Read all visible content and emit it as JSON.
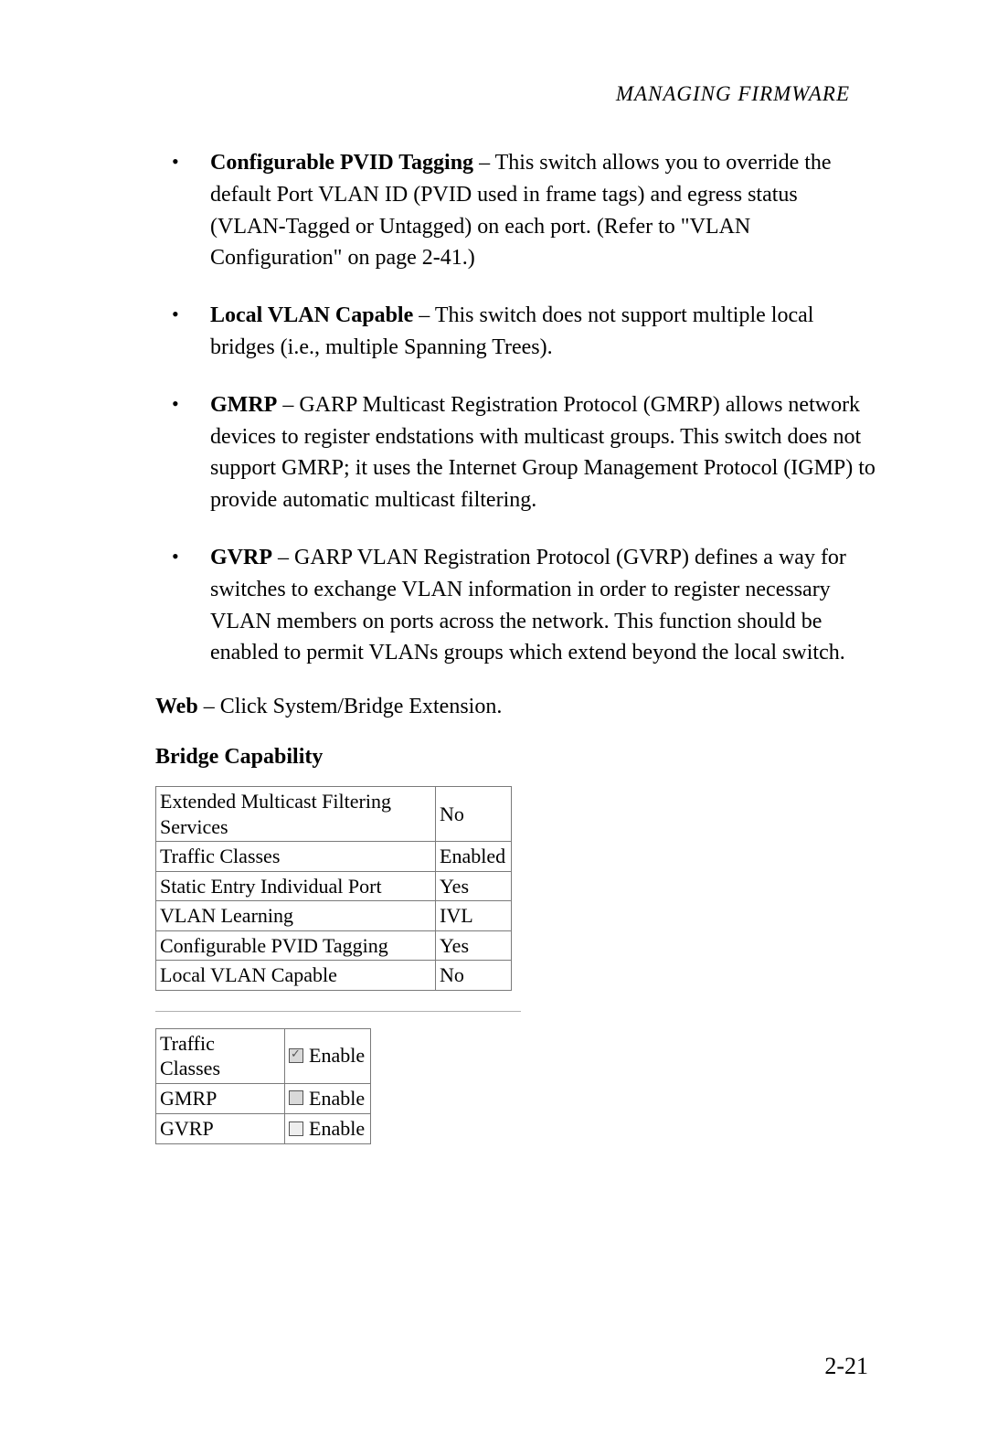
{
  "header": "MANAGING FIRMWARE",
  "bullets": [
    {
      "term": "Configurable PVID Tagging",
      "text": " – This switch allows you to override the default Port VLAN ID (PVID used in frame tags) and egress status (VLAN-Tagged or Untagged) on each port. (Refer to \"VLAN Configuration\" on page 2-41.)"
    },
    {
      "term": "Local VLAN Capable",
      "text": " – This switch does not support multiple local bridges (i.e., multiple Spanning Trees)."
    },
    {
      "term": "GMRP",
      "text": " – GARP Multicast Registration Protocol (GMRP) allows network devices to register endstations with multicast groups. This switch does not support GMRP; it uses the Internet Group Management Protocol (IGMP) to provide automatic multicast filtering."
    },
    {
      "term": "GVRP",
      "text": " – GARP VLAN Registration Protocol (GVRP) defines a way for switches to exchange VLAN information in order to register necessary VLAN members on ports across the network. This function should be enabled to permit VLANs groups which extend beyond the local switch."
    }
  ],
  "web_line": {
    "label": "Web",
    "text": " – Click System/Bridge Extension."
  },
  "capability_heading": "Bridge Capability",
  "capability_table": {
    "rows": [
      {
        "label": "Extended Multicast Filtering Services",
        "value": "No"
      },
      {
        "label": "Traffic Classes",
        "value": "Enabled"
      },
      {
        "label": "Static Entry Individual Port",
        "value": "Yes"
      },
      {
        "label": "VLAN Learning",
        "value": "IVL"
      },
      {
        "label": "Configurable PVID Tagging",
        "value": "Yes"
      },
      {
        "label": "Local VLAN Capable",
        "value": "No"
      }
    ]
  },
  "options_table": {
    "rows": [
      {
        "label": "Traffic Classes",
        "checked": true,
        "greyed": true,
        "suffix": "Enable"
      },
      {
        "label": "GMRP",
        "checked": false,
        "greyed": true,
        "suffix": "Enable"
      },
      {
        "label": "GVRP",
        "checked": false,
        "greyed": false,
        "suffix": "Enable"
      }
    ]
  },
  "page_number": "2-21"
}
